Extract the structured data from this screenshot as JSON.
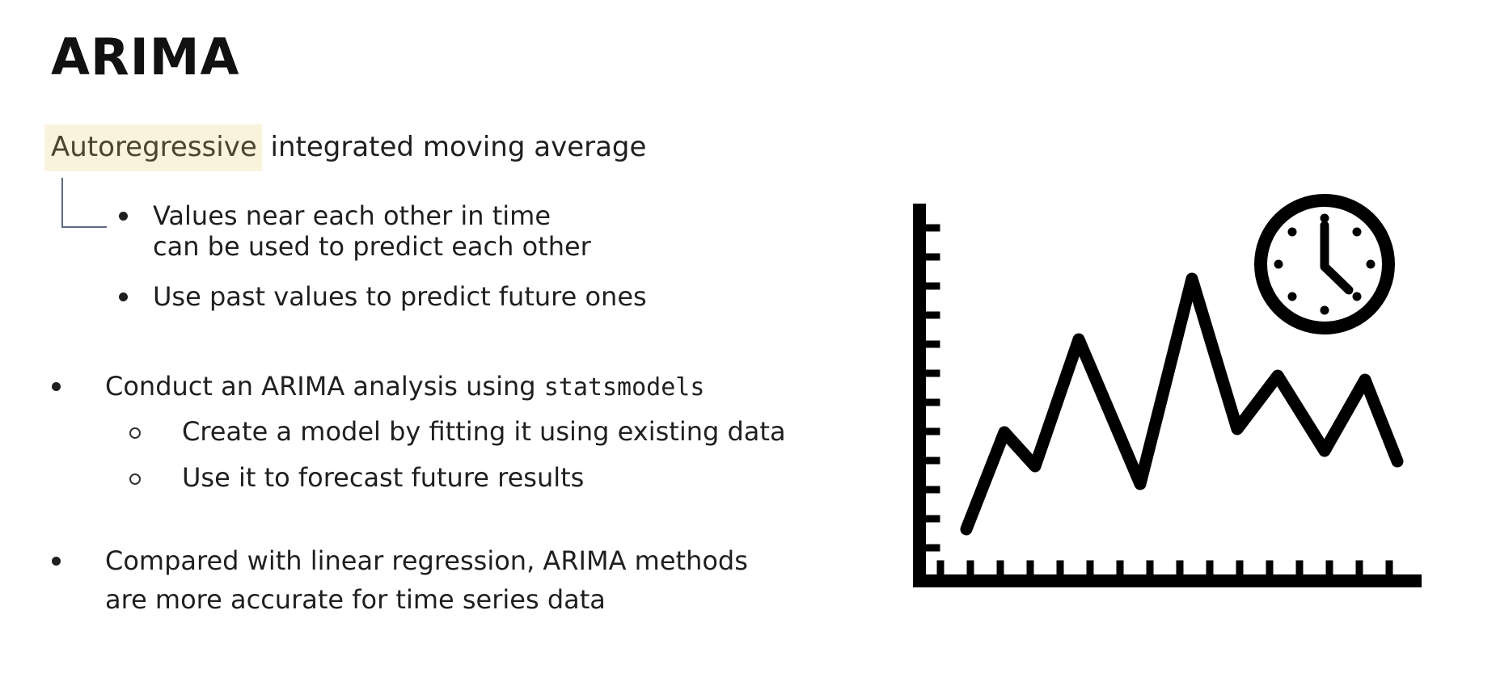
{
  "slide": {
    "title": "ARIMA",
    "acronym": {
      "highlighted_term": "Autoregressive",
      "rest": " integrated moving average"
    },
    "autoregressive_points": [
      {
        "line1": "Values near each other in time",
        "line2": "can be used to predict each other"
      },
      {
        "line1": "Use past values to predict future ones",
        "line2": ""
      }
    ],
    "bullets": [
      {
        "text": "Conduct an ARIMA analysis using ",
        "code": "statsmodels",
        "sub": [
          "Create a model by fitting it using existing data",
          "Use it to forecast future results"
        ]
      },
      {
        "line1": "Compared with linear regression, ARIMA methods",
        "line2": "are more accurate for time series data"
      }
    ]
  },
  "illustration": {
    "icon": "time-series-chart-with-clock-icon",
    "color": "#000000"
  },
  "colors": {
    "highlight_bg": "#f9f3dc",
    "bracket": "#5d6a86",
    "text": "#1f1f1f"
  }
}
